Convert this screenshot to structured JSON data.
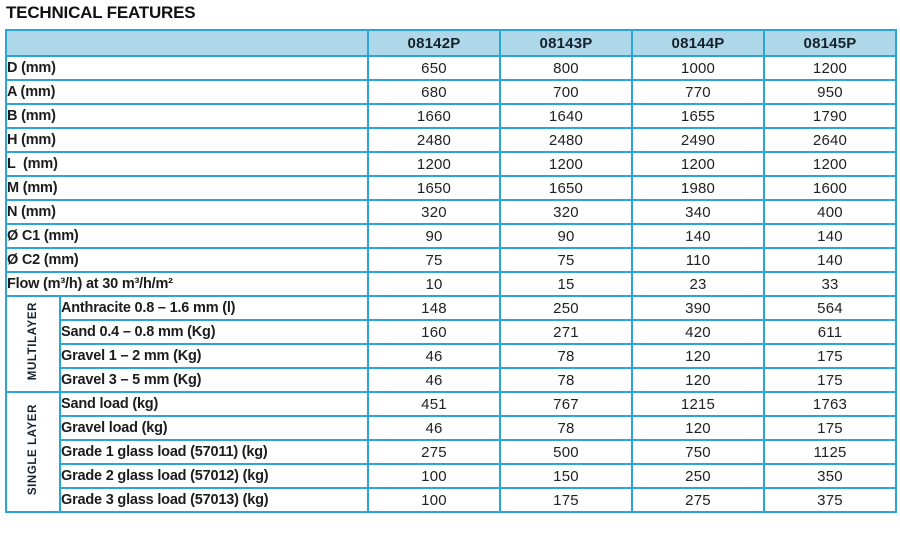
{
  "title": "TECHNICAL FEATURES",
  "colors": {
    "table_border": "#2ba4d6",
    "outer_border": "#2196c8",
    "header_background": "#aed7ea",
    "header_underline": "#1e8fc0",
    "text": "#1c1c1c"
  },
  "table": {
    "columns": [
      "08142P",
      "08143P",
      "08144P",
      "08145P"
    ],
    "rows": [
      {
        "label": "D (mm)",
        "values": [
          "650",
          "800",
          "1000",
          "1200"
        ]
      },
      {
        "label": "A (mm)",
        "values": [
          "680",
          "700",
          "770",
          "950"
        ]
      },
      {
        "label": "B (mm)",
        "values": [
          "1660",
          "1640",
          "1655",
          "1790"
        ]
      },
      {
        "label": "H (mm)",
        "values": [
          "2480",
          "2480",
          "2490",
          "2640"
        ]
      },
      {
        "label": "L  (mm)",
        "values": [
          "1200",
          "1200",
          "1200",
          "1200"
        ]
      },
      {
        "label": "M (mm)",
        "values": [
          "1650",
          "1650",
          "1980",
          "1600"
        ]
      },
      {
        "label": "N (mm)",
        "values": [
          "320",
          "320",
          "340",
          "400"
        ]
      },
      {
        "label": "Ø C1 (mm)",
        "values": [
          "90",
          "90",
          "140",
          "140"
        ]
      },
      {
        "label": "Ø C2 (mm)",
        "values": [
          "75",
          "75",
          "110",
          "140"
        ]
      },
      {
        "label": "Flow (m³/h) at 30 m³/h/m²",
        "values": [
          "10",
          "15",
          "23",
          "33"
        ]
      }
    ],
    "groups": [
      {
        "name": "MULTILAYER",
        "rows": [
          {
            "label": "Anthracite 0.8 – 1.6 mm (l)",
            "values": [
              "148",
              "250",
              "390",
              "564"
            ]
          },
          {
            "label": "Sand 0.4 – 0.8 mm (Kg)",
            "values": [
              "160",
              "271",
              "420",
              "611"
            ]
          },
          {
            "label": "Gravel 1 – 2 mm (Kg)",
            "values": [
              "46",
              "78",
              "120",
              "175"
            ]
          },
          {
            "label": "Gravel 3 – 5 mm (Kg)",
            "values": [
              "46",
              "78",
              "120",
              "175"
            ]
          }
        ]
      },
      {
        "name": "SINGLE LAYER",
        "rows": [
          {
            "label": "Sand load (kg)",
            "values": [
              "451",
              "767",
              "1215",
              "1763"
            ]
          },
          {
            "label": "Gravel load (kg)",
            "values": [
              "46",
              "78",
              "120",
              "175"
            ]
          },
          {
            "label": "Grade 1 glass load (57011) (kg)",
            "values": [
              "275",
              "500",
              "750",
              "1125"
            ]
          },
          {
            "label": "Grade 2 glass load (57012) (kg)",
            "values": [
              "100",
              "150",
              "250",
              "350"
            ]
          },
          {
            "label": "Grade 3 glass load (57013) (kg)",
            "values": [
              "100",
              "175",
              "275",
              "375"
            ]
          }
        ]
      }
    ]
  }
}
